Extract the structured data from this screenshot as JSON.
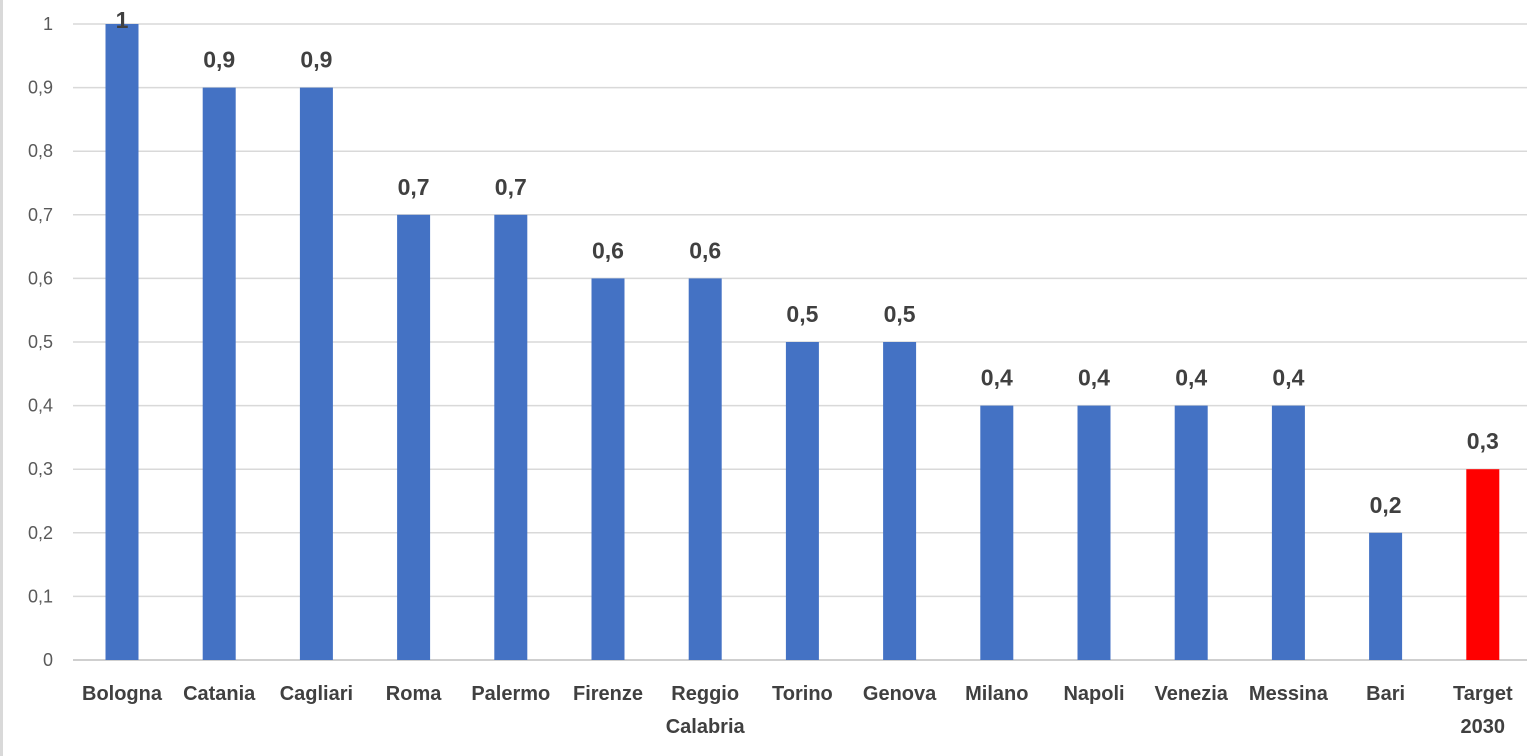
{
  "chart_data": {
    "type": "bar",
    "categories": [
      [
        "Bologna"
      ],
      [
        "Catania"
      ],
      [
        "Cagliari"
      ],
      [
        "Roma"
      ],
      [
        "Palermo"
      ],
      [
        "Firenze"
      ],
      [
        "Reggio",
        "Calabria"
      ],
      [
        "Torino"
      ],
      [
        "Genova"
      ],
      [
        "Milano"
      ],
      [
        "Napoli"
      ],
      [
        "Venezia"
      ],
      [
        "Messina"
      ],
      [
        "Bari"
      ],
      [
        "Target",
        "2030"
      ]
    ],
    "values": [
      1,
      0.9,
      0.9,
      0.7,
      0.7,
      0.6,
      0.6,
      0.5,
      0.5,
      0.4,
      0.4,
      0.4,
      0.4,
      0.2,
      0.3
    ],
    "data_labels": [
      "1",
      "0,9",
      "0,9",
      "0,7",
      "0,7",
      "0,6",
      "0,6",
      "0,5",
      "0,5",
      "0,4",
      "0,4",
      "0,4",
      "0,4",
      "0,2",
      "0,3"
    ],
    "bar_colors": [
      "#4472c4",
      "#4472c4",
      "#4472c4",
      "#4472c4",
      "#4472c4",
      "#4472c4",
      "#4472c4",
      "#4472c4",
      "#4472c4",
      "#4472c4",
      "#4472c4",
      "#4472c4",
      "#4472c4",
      "#4472c4",
      "#ff0000"
    ],
    "y_ticks": [
      {
        "value": 0,
        "label": "0"
      },
      {
        "value": 0.1,
        "label": "0,1"
      },
      {
        "value": 0.2,
        "label": "0,2"
      },
      {
        "value": 0.3,
        "label": "0,3"
      },
      {
        "value": 0.4,
        "label": "0,4"
      },
      {
        "value": 0.5,
        "label": "0,5"
      },
      {
        "value": 0.6,
        "label": "0,6"
      },
      {
        "value": 0.7,
        "label": "0,7"
      },
      {
        "value": 0.8,
        "label": "0,8"
      },
      {
        "value": 0.9,
        "label": "0,9"
      },
      {
        "value": 1,
        "label": "1"
      }
    ],
    "ylim": [
      0,
      1
    ],
    "grid": true,
    "legend": "none",
    "title": "",
    "xlabel": "",
    "ylabel": ""
  }
}
